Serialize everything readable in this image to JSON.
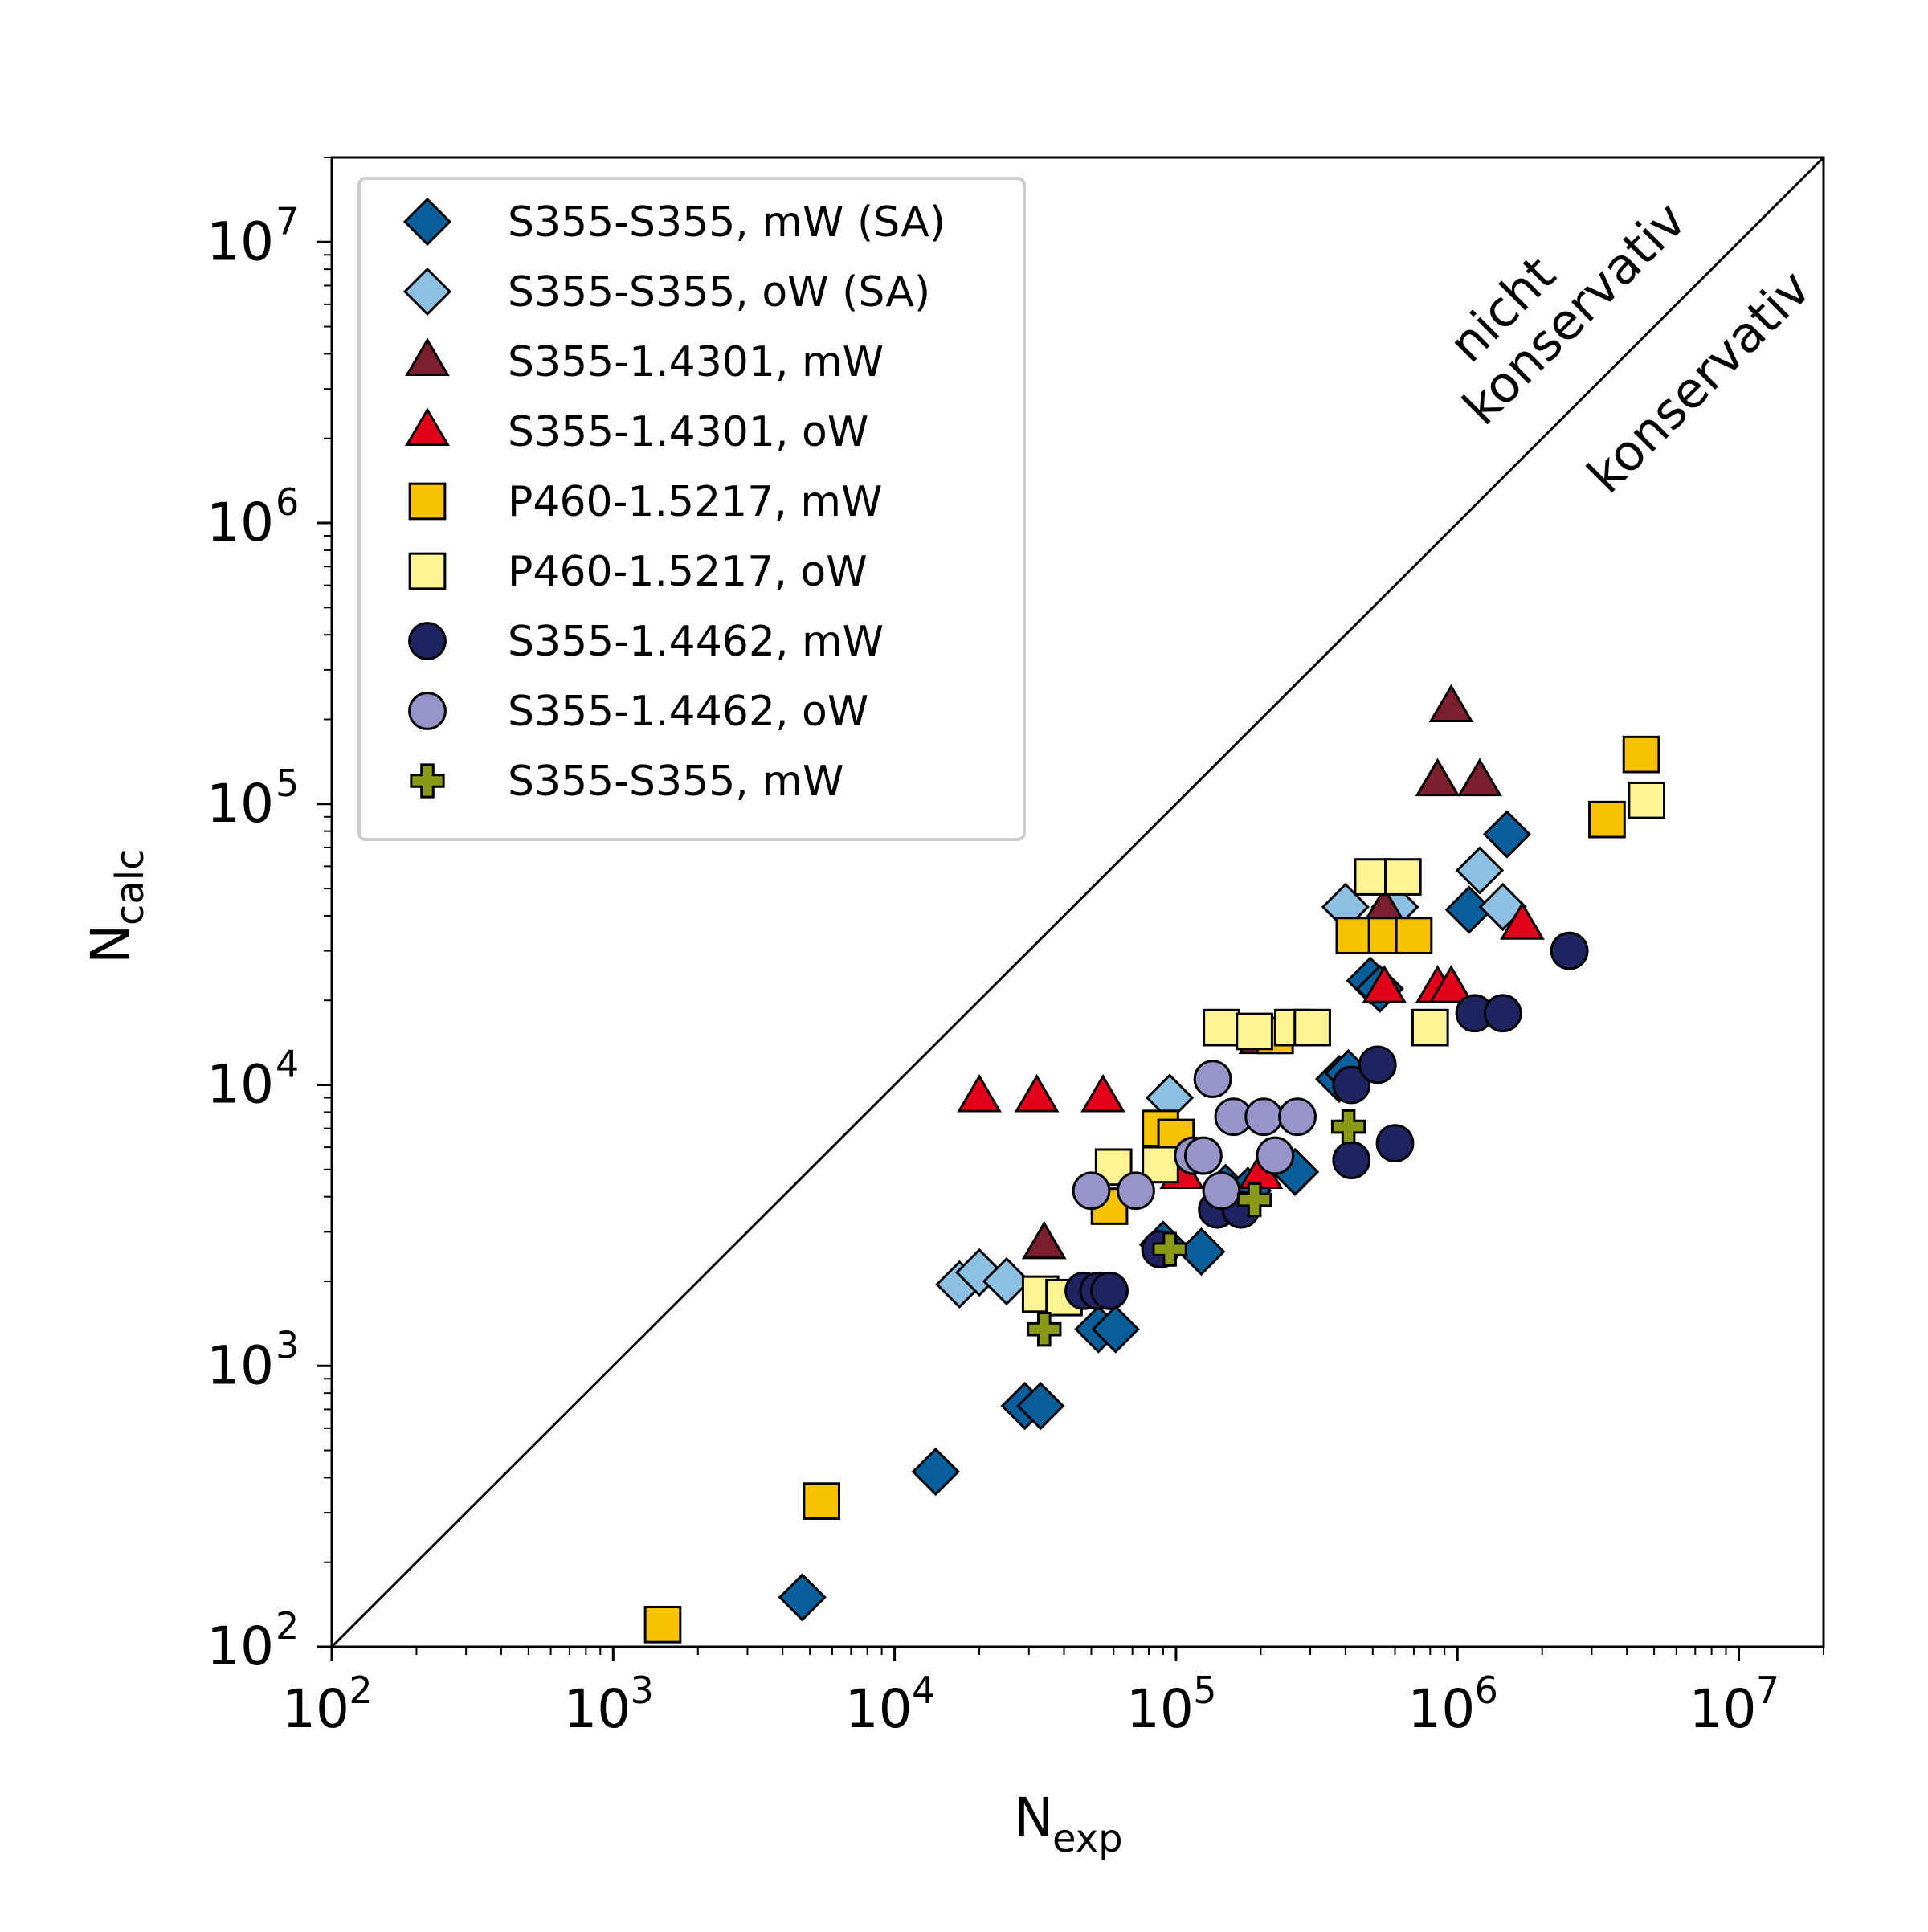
{
  "chart_data": {
    "type": "scatter",
    "xlabel": {
      "main": "N",
      "sub": "exp"
    },
    "ylabel": {
      "main": "N",
      "sub": "calc"
    },
    "xscale": "log",
    "yscale": "log",
    "xlim": [
      100,
      20000000
    ],
    "ylim": [
      100,
      20000000
    ],
    "grid": false,
    "legend_position": "upper-left",
    "xticks": [
      {
        "base": "10",
        "exp": "2",
        "value": 100
      },
      {
        "base": "10",
        "exp": "3",
        "value": 1000
      },
      {
        "base": "10",
        "exp": "4",
        "value": 10000
      },
      {
        "base": "10",
        "exp": "5",
        "value": 100000
      },
      {
        "base": "10",
        "exp": "6",
        "value": 1000000
      },
      {
        "base": "10",
        "exp": "7",
        "value": 10000000
      }
    ],
    "yticks": [
      {
        "base": "10",
        "exp": "2",
        "value": 100
      },
      {
        "base": "10",
        "exp": "3",
        "value": 1000
      },
      {
        "base": "10",
        "exp": "4",
        "value": 10000
      },
      {
        "base": "10",
        "exp": "5",
        "value": 100000
      },
      {
        "base": "10",
        "exp": "6",
        "value": 1000000
      },
      {
        "base": "10",
        "exp": "7",
        "value": 10000000
      }
    ],
    "reference_line": {
      "kind": "diagonal",
      "points": [
        [
          100,
          100
        ],
        [
          20000000,
          20000000
        ]
      ]
    },
    "annotations": {
      "upper_region": [
        "nicht",
        "konservativ"
      ],
      "lower_region": "konservativ"
    },
    "series": [
      {
        "name": "S355-S355, mW (SA)",
        "marker": "diamond",
        "color": "#0a5f9a",
        "points": [
          [
            4700,
            150
          ],
          [
            14000,
            420
          ],
          [
            29000,
            720
          ],
          [
            33000,
            720
          ],
          [
            53000,
            1350
          ],
          [
            61000,
            1350
          ],
          [
            90000,
            2700
          ],
          [
            123000,
            2550
          ],
          [
            150000,
            4300
          ],
          [
            180000,
            4200
          ],
          [
            265000,
            4900
          ],
          [
            380000,
            10500
          ],
          [
            410000,
            11000
          ],
          [
            490000,
            23500
          ],
          [
            530000,
            22000
          ],
          [
            1100000,
            42000
          ],
          [
            1500000,
            78000
          ]
        ]
      },
      {
        "name": "S355-S355, oW (SA)",
        "marker": "diamond",
        "color": "#8dbfe3",
        "points": [
          [
            17000,
            1950
          ],
          [
            20000,
            2150
          ],
          [
            25000,
            2000
          ],
          [
            95000,
            9000
          ],
          [
            400000,
            43000
          ],
          [
            600000,
            43000
          ],
          [
            1200000,
            58000
          ],
          [
            1450000,
            43000
          ]
        ]
      },
      {
        "name": "S355-1.4301, mW",
        "marker": "triangle",
        "color": "#7a1f2b",
        "points": [
          [
            34000,
            2700
          ],
          [
            200000,
            14500
          ],
          [
            550000,
            42000
          ],
          [
            950000,
            220000
          ],
          [
            850000,
            120000
          ],
          [
            1200000,
            120000
          ]
        ]
      },
      {
        "name": "S355-1.4301, oW",
        "marker": "triangle",
        "color": "#e3001b",
        "points": [
          [
            20000,
            9000
          ],
          [
            32000,
            9000
          ],
          [
            55000,
            9000
          ],
          [
            105000,
            4800
          ],
          [
            200000,
            4800
          ],
          [
            550000,
            22000
          ],
          [
            850000,
            22000
          ],
          [
            950000,
            22000
          ],
          [
            1700000,
            37000
          ]
        ]
      },
      {
        "name": "P460-1.5217, mW",
        "marker": "square",
        "color": "#f7c300",
        "points": [
          [
            1500,
            120
          ],
          [
            5500,
            330
          ],
          [
            58000,
            3700
          ],
          [
            88000,
            7000
          ],
          [
            100000,
            6500
          ],
          [
            225000,
            15000
          ],
          [
            430000,
            34000
          ],
          [
            560000,
            34000
          ],
          [
            700000,
            34000
          ],
          [
            3400000,
            88000
          ],
          [
            4500000,
            150000
          ]
        ]
      },
      {
        "name": "P460-1.5217, oW",
        "marker": "square",
        "color": "#fcf392",
        "points": [
          [
            33000,
            1800
          ],
          [
            40000,
            1750
          ],
          [
            60000,
            5100
          ],
          [
            88000,
            5200
          ],
          [
            145000,
            16000
          ],
          [
            190000,
            15500
          ],
          [
            260000,
            16000
          ],
          [
            305000,
            16000
          ],
          [
            500000,
            55000
          ],
          [
            640000,
            55000
          ],
          [
            800000,
            16000
          ],
          [
            4700000,
            103000
          ]
        ]
      },
      {
        "name": "S355-1.4462, mW",
        "marker": "circle",
        "color": "#1f2460",
        "points": [
          [
            47000,
            1850
          ],
          [
            53000,
            1850
          ],
          [
            58000,
            1850
          ],
          [
            88000,
            2600
          ],
          [
            140000,
            3600
          ],
          [
            170000,
            3600
          ],
          [
            420000,
            5400
          ],
          [
            600000,
            6200
          ],
          [
            420000,
            10000
          ],
          [
            520000,
            11800
          ],
          [
            1150000,
            18000
          ],
          [
            1450000,
            18000
          ],
          [
            2500000,
            30000
          ]
        ]
      },
      {
        "name": "S355-1.4462, oW",
        "marker": "circle",
        "color": "#9893c8",
        "points": [
          [
            50000,
            4200
          ],
          [
            72000,
            4200
          ],
          [
            115000,
            5600
          ],
          [
            125000,
            5600
          ],
          [
            145000,
            4200
          ],
          [
            135000,
            10500
          ],
          [
            160000,
            7700
          ],
          [
            205000,
            7700
          ],
          [
            225000,
            5600
          ],
          [
            270000,
            7700
          ]
        ]
      },
      {
        "name": "S355-S355, mW",
        "marker": "plus",
        "color": "#8a9a16",
        "points": [
          [
            34000,
            1350
          ],
          [
            95000,
            2600
          ],
          [
            190000,
            3900
          ],
          [
            410000,
            7100
          ]
        ]
      }
    ]
  }
}
